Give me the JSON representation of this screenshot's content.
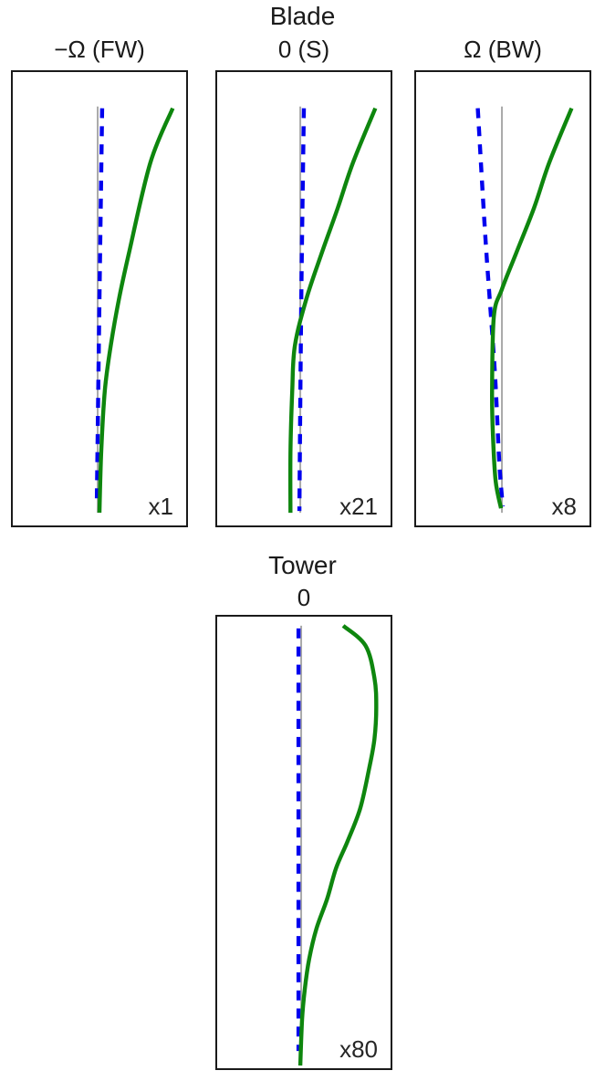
{
  "titles": {
    "blade": "Blade",
    "tower": "Tower"
  },
  "colors": {
    "undeformed_gray": "#a8a8a8",
    "dashed_blue": "#0000ee",
    "solid_green": "#0e860e",
    "frame": "#1a1a1a",
    "text": "#1a1a1a"
  },
  "chart_data": [
    {
      "id": "blade-fw",
      "group": "Blade",
      "type": "line",
      "title": "−Ω (FW)",
      "annotation": "x1",
      "axes": "hidden (qualitative mode-shape panel, vertical span = blade length, horizontal = deflection)",
      "series": [
        {
          "name": "gray-reference-line",
          "color": "#a8a8a8",
          "width": 2,
          "dash": null,
          "smooth": false,
          "points": [
            [
              95,
              38
            ],
            [
              95,
              487
            ]
          ]
        },
        {
          "name": "blue-dashed-curve",
          "color": "#0000ee",
          "width": 4.5,
          "dash": [
            11,
            9
          ],
          "smooth": true,
          "points": [
            [
              100,
              40
            ],
            [
              97,
              250
            ],
            [
              94,
              478
            ]
          ]
        },
        {
          "name": "green-solid-curve",
          "color": "#0e860e",
          "width": 4.5,
          "dash": null,
          "smooth": true,
          "points": [
            [
              179,
              40
            ],
            [
              154,
              100
            ],
            [
              130,
              200
            ],
            [
              119,
              250
            ],
            [
              110,
              300
            ],
            [
              103,
              352
            ],
            [
              99,
              419
            ],
            [
              97,
              487
            ]
          ]
        }
      ]
    },
    {
      "id": "blade-s",
      "group": "Blade",
      "type": "line",
      "title": "0 (S)",
      "annotation": "x21",
      "axes": "hidden (qualitative mode-shape panel)",
      "series": [
        {
          "name": "gray-reference-line",
          "color": "#a8a8a8",
          "width": 2,
          "dash": null,
          "smooth": false,
          "points": [
            [
              93,
              38
            ],
            [
              93,
              487
            ]
          ]
        },
        {
          "name": "blue-dashed-curve",
          "color": "#0000ee",
          "width": 4.5,
          "dash": [
            11,
            9
          ],
          "smooth": true,
          "points": [
            [
              97,
              40
            ],
            [
              94,
              260
            ],
            [
              92,
              485
            ]
          ]
        },
        {
          "name": "green-solid-curve",
          "color": "#0e860e",
          "width": 4.5,
          "dash": null,
          "smooth": true,
          "points": [
            [
              177,
              40
            ],
            [
              152,
              100
            ],
            [
              135,
              150
            ],
            [
              117,
              200
            ],
            [
              100,
              250
            ],
            [
              87,
              302
            ],
            [
              84,
              352
            ],
            [
              82,
              420
            ],
            [
              82,
              487
            ]
          ]
        }
      ]
    },
    {
      "id": "blade-bw",
      "group": "Blade",
      "type": "line",
      "title": "Ω (BW)",
      "annotation": "x8",
      "axes": "hidden (qualitative mode-shape panel)",
      "series": [
        {
          "name": "gray-reference-line",
          "color": "#a8a8a8",
          "width": 2,
          "dash": null,
          "smooth": false,
          "points": [
            [
              96,
              38
            ],
            [
              96,
              487
            ]
          ]
        },
        {
          "name": "blue-dashed-curve",
          "color": "#0000ee",
          "width": 4.5,
          "dash": [
            11,
            9
          ],
          "smooth": true,
          "points": [
            [
              69,
              40
            ],
            [
              78,
              190
            ],
            [
              88,
              330
            ],
            [
              93,
              430
            ],
            [
              97,
              480
            ]
          ]
        },
        {
          "name": "green-solid-curve",
          "color": "#0e860e",
          "width": 4.5,
          "dash": null,
          "smooth": true,
          "points": [
            [
              174,
              40
            ],
            [
              149,
              100
            ],
            [
              132,
              150
            ],
            [
              112,
              200
            ],
            [
              96,
              240
            ],
            [
              87,
              270
            ],
            [
              85,
              352
            ],
            [
              86,
              402
            ],
            [
              89,
              452
            ],
            [
              95,
              482
            ]
          ]
        }
      ]
    },
    {
      "id": "tower-0",
      "group": "Tower",
      "type": "line",
      "title": "0",
      "annotation": "x80",
      "axes": "hidden (qualitative mode-shape panel, vertical span = tower height)",
      "series": [
        {
          "name": "gray-reference-line",
          "color": "#a8a8a8",
          "width": 2,
          "dash": null,
          "smooth": false,
          "points": [
            [
              94,
              10
            ],
            [
              94,
              488
            ]
          ]
        },
        {
          "name": "blue-dashed-curve",
          "color": "#0000ee",
          "width": 4.5,
          "dash": [
            11,
            9
          ],
          "smooth": false,
          "points": [
            [
              91,
              13
            ],
            [
              91,
              480
            ]
          ]
        },
        {
          "name": "green-solid-curve",
          "color": "#0e860e",
          "width": 4.5,
          "dash": null,
          "smooth": true,
          "points": [
            [
              141,
              10
            ],
            [
              166,
              32
            ],
            [
              176,
              68
            ],
            [
              178,
              100
            ],
            [
              176,
              135
            ],
            [
              170,
              168
            ],
            [
              160,
              212
            ],
            [
              146,
              248
            ],
            [
              133,
              278
            ],
            [
              123,
              312
            ],
            [
              111,
              345
            ],
            [
              103,
              378
            ],
            [
              98,
              412
            ],
            [
              95,
              445
            ],
            [
              93,
              496
            ]
          ]
        }
      ]
    }
  ]
}
